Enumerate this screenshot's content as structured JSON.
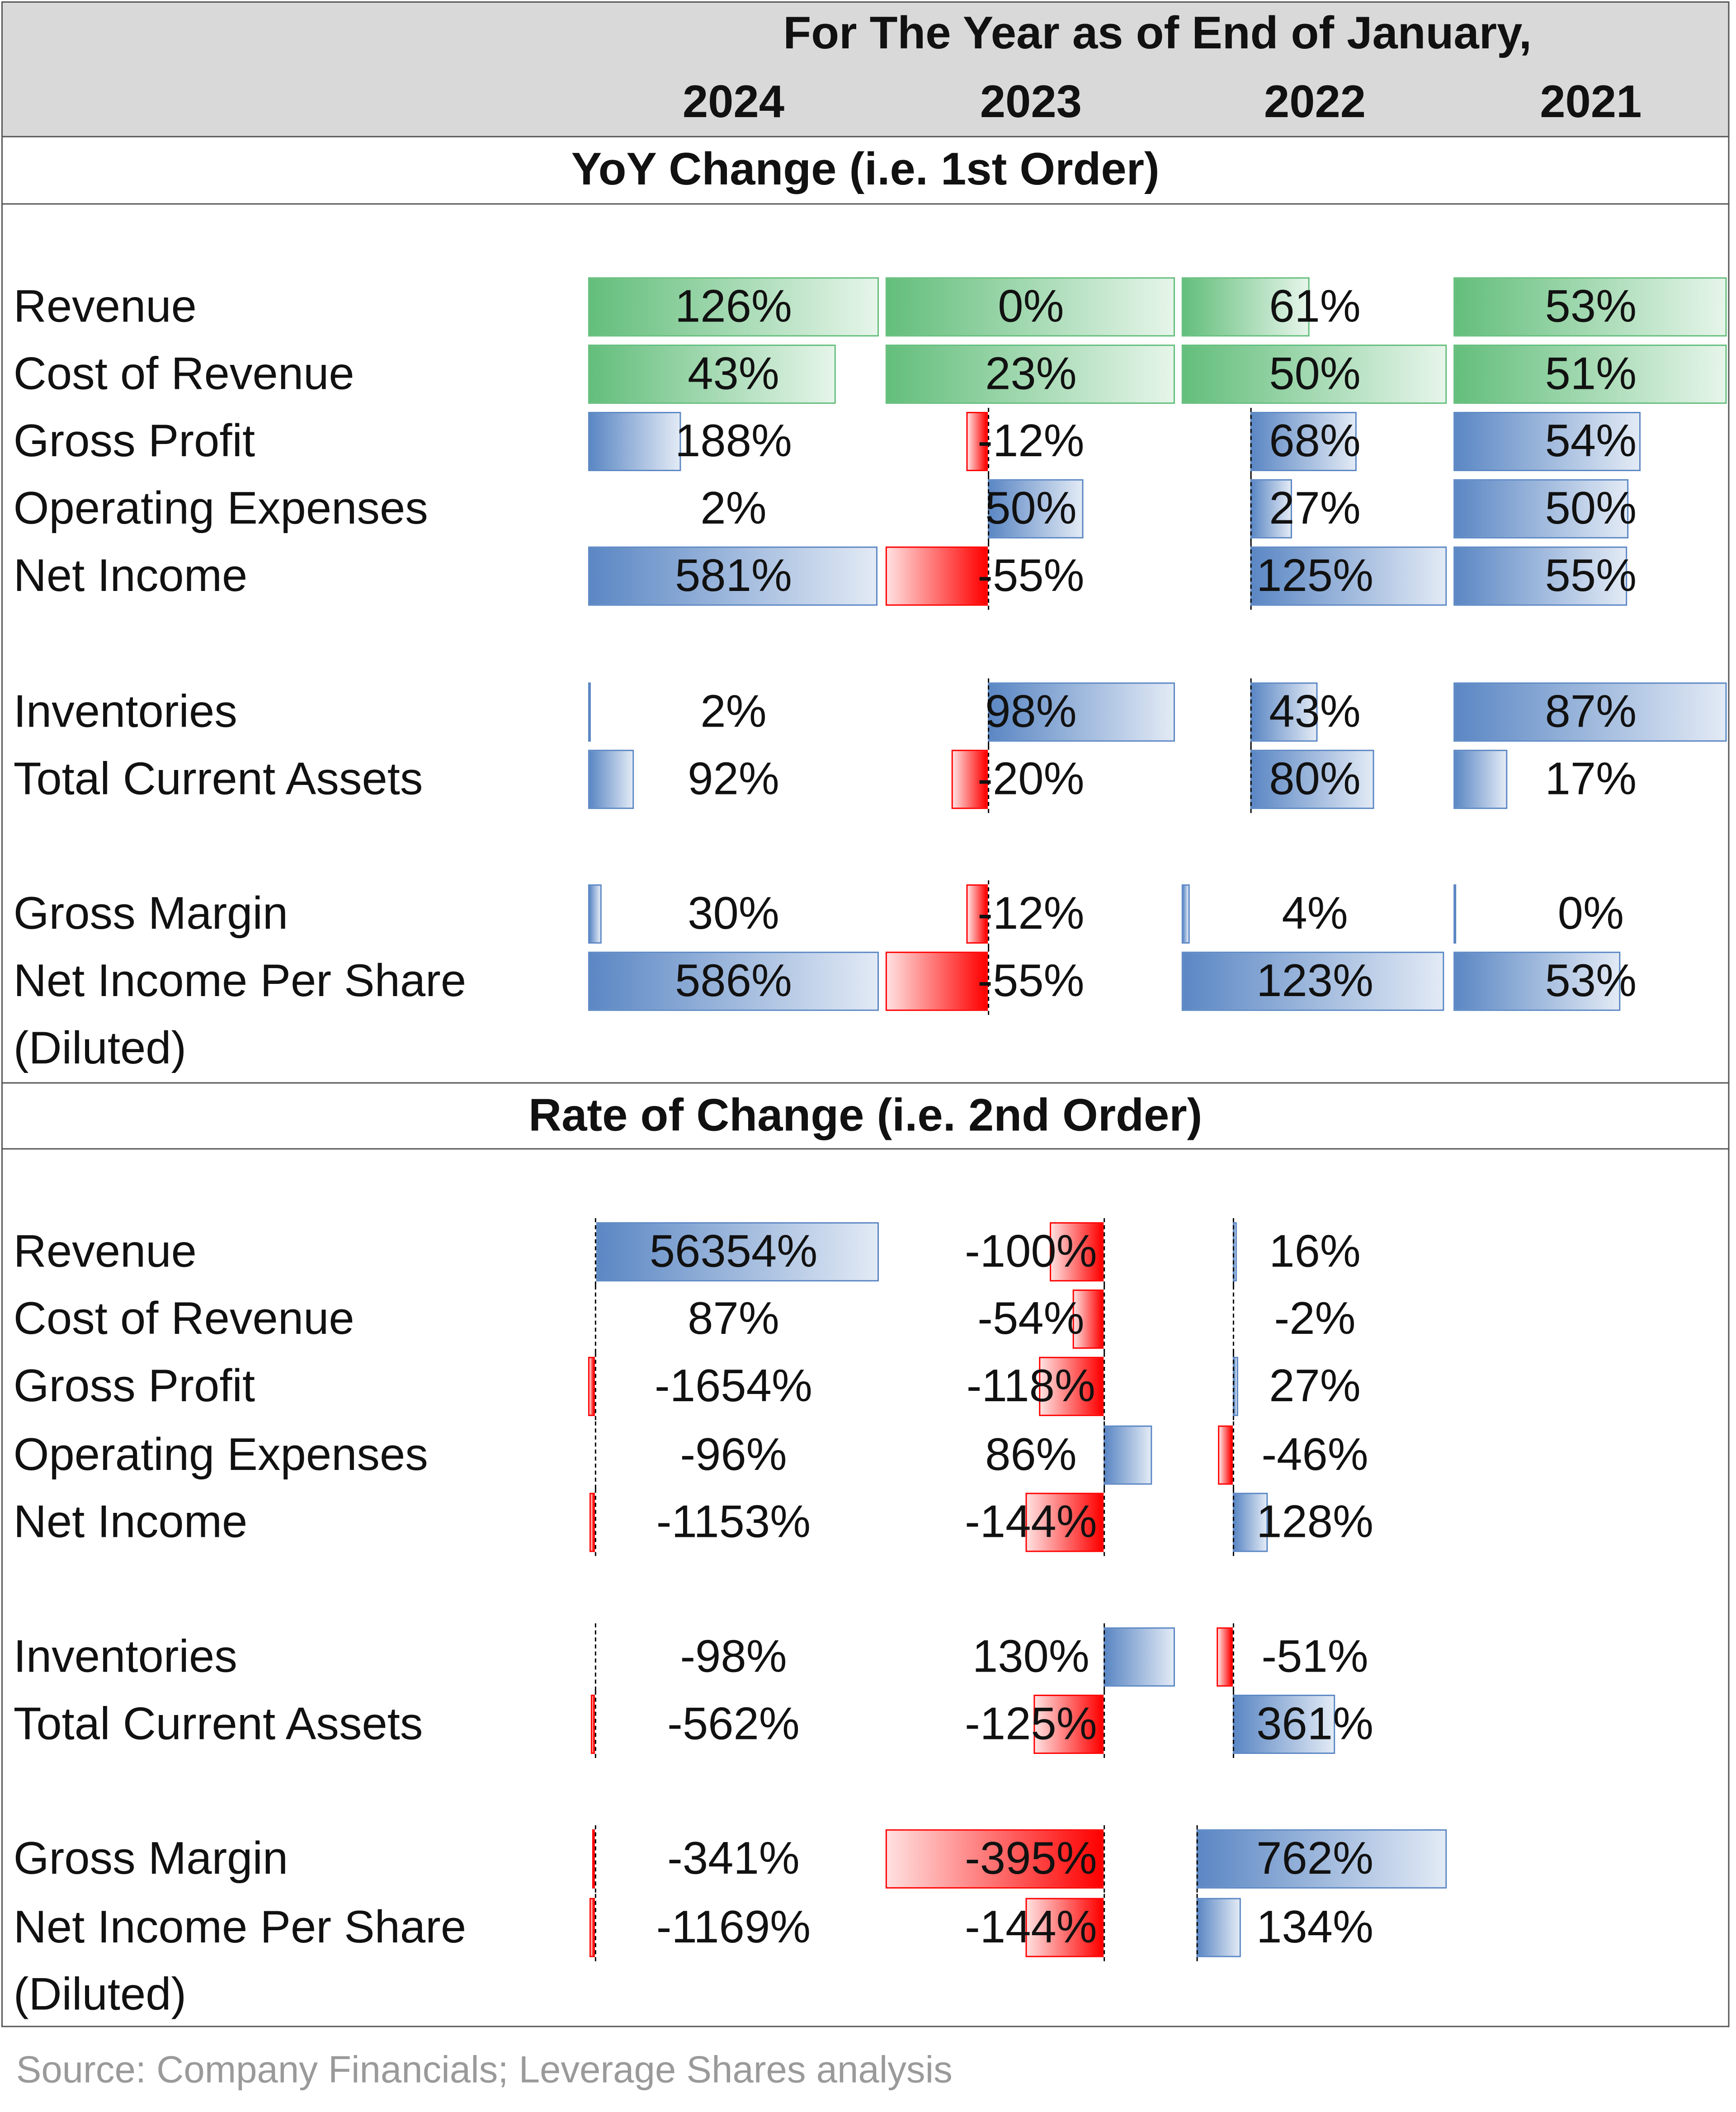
{
  "header": {
    "title": "For The Year as of End of January,",
    "years": [
      "2024",
      "2023",
      "2022",
      "2021"
    ]
  },
  "sections": [
    {
      "title": "YoY Change (i.e. 1st Order)",
      "rows": [
        {
          "label": "Revenue",
          "values": [
            "126%",
            "0%",
            "61%",
            "53%"
          ]
        },
        {
          "label": "Cost of Revenue",
          "values": [
            "43%",
            "23%",
            "50%",
            "51%"
          ]
        },
        {
          "label": "Gross Profit",
          "values": [
            "188%",
            "-12%",
            "68%",
            "54%"
          ]
        },
        {
          "label": "Operating Expenses",
          "values": [
            "2%",
            "50%",
            "27%",
            "50%"
          ]
        },
        {
          "label": "Net Income",
          "values": [
            "581%",
            "-55%",
            "125%",
            "55%"
          ]
        },
        {
          "label": "Inventories",
          "values": [
            "2%",
            "98%",
            "43%",
            "87%"
          ]
        },
        {
          "label": "Total Current Assets",
          "values": [
            "92%",
            "-20%",
            "80%",
            "17%"
          ]
        },
        {
          "label": "Gross Margin",
          "values": [
            "30%",
            "-12%",
            "4%",
            "0%"
          ]
        },
        {
          "label": "Net Income Per Share (Diluted)",
          "values": [
            "586%",
            "-55%",
            "123%",
            "53%"
          ]
        }
      ]
    },
    {
      "title": "Rate of Change (i.e. 2nd Order)",
      "rows": [
        {
          "label": "Revenue",
          "values": [
            "56354%",
            "-100%",
            "16%"
          ]
        },
        {
          "label": "Cost of Revenue",
          "values": [
            "87%",
            "-54%",
            "-2%"
          ]
        },
        {
          "label": "Gross Profit",
          "values": [
            "-1654%",
            "-118%",
            "27%"
          ]
        },
        {
          "label": "Operating Expenses",
          "values": [
            "-96%",
            "86%",
            "-46%"
          ]
        },
        {
          "label": "Net Income",
          "values": [
            "-1153%",
            "-144%",
            "128%"
          ]
        },
        {
          "label": "Inventories",
          "values": [
            "-98%",
            "130%",
            "-51%"
          ]
        },
        {
          "label": "Total Current Assets",
          "values": [
            "-562%",
            "-125%",
            "361%"
          ]
        },
        {
          "label": "Gross Margin",
          "values": [
            "-341%",
            "-395%",
            "762%"
          ]
        },
        {
          "label": "Net Income Per Share (Diluted)",
          "values": [
            "-1169%",
            "-144%",
            "134%"
          ]
        }
      ]
    }
  ],
  "source": "Source: Company Financials; Leverage Shares analysis",
  "colors": {
    "positive_green": "#63be7b",
    "positive_blue": "#5b87c4",
    "negative_red": "#ff0000",
    "header_bg": "#d9d9d9"
  }
}
